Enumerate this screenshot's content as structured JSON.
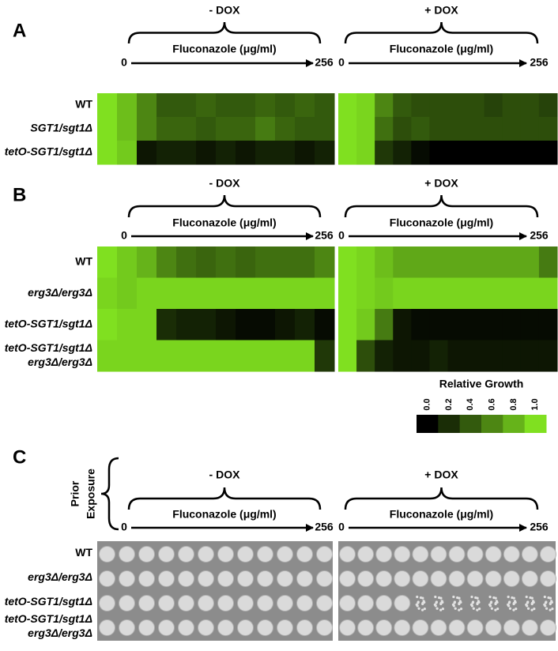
{
  "panels": [
    {
      "letter": "A",
      "rows": [
        {
          "lines": [
            "WT"
          ]
        },
        {
          "lines": [
            "SGT1/sgt1Δ"
          ]
        },
        {
          "lines": [
            "tetO-SGT1/sgt1Δ"
          ]
        }
      ],
      "conditions": [
        {
          "label": "- DOX",
          "axis_title": "Fluconazole (μg/ml)",
          "axis_start": 0,
          "axis_end": 256,
          "values": [
            [
              1.0,
              0.85,
              0.6,
              0.4,
              0.4,
              0.45,
              0.4,
              0.4,
              0.45,
              0.4,
              0.45,
              0.4
            ],
            [
              1.0,
              0.85,
              0.6,
              0.45,
              0.45,
              0.4,
              0.45,
              0.45,
              0.55,
              0.45,
              0.4,
              0.4
            ],
            [
              1.0,
              0.9,
              0.1,
              0.15,
              0.15,
              0.1,
              0.15,
              0.1,
              0.15,
              0.15,
              0.1,
              0.15
            ]
          ]
        },
        {
          "label": "+ DOX",
          "axis_title": "Fluconazole (μg/ml)",
          "axis_start": 0,
          "axis_end": 256,
          "values": [
            [
              1.0,
              0.95,
              0.6,
              0.4,
              0.35,
              0.35,
              0.35,
              0.35,
              0.3,
              0.35,
              0.35,
              0.3
            ],
            [
              1.0,
              0.95,
              0.5,
              0.35,
              0.4,
              0.35,
              0.35,
              0.35,
              0.35,
              0.35,
              0.35,
              0.35
            ],
            [
              1.0,
              0.95,
              0.25,
              0.15,
              0.05,
              0,
              0,
              0,
              0,
              0,
              0,
              0
            ]
          ]
        }
      ]
    },
    {
      "letter": "B",
      "rows": [
        {
          "lines": [
            "WT"
          ]
        },
        {
          "lines": [
            "erg3Δ/erg3Δ"
          ]
        },
        {
          "lines": [
            "tetO-SGT1/sgt1Δ"
          ]
        },
        {
          "lines": [
            "tetO-SGT1/sgt1Δ",
            "erg3Δ/erg3Δ"
          ]
        }
      ],
      "conditions": [
        {
          "label": "- DOX",
          "axis_title": "Fluconazole (μg/ml)",
          "axis_start": 0,
          "axis_end": 256,
          "values": [
            [
              1.0,
              0.9,
              0.8,
              0.6,
              0.5,
              0.45,
              0.5,
              0.45,
              0.5,
              0.5,
              0.5,
              0.6
            ],
            [
              0.95,
              0.9,
              0.95,
              0.95,
              0.95,
              0.95,
              0.95,
              0.95,
              0.95,
              0.95,
              0.95,
              0.95
            ],
            [
              1.0,
              0.95,
              0.95,
              0.2,
              0.15,
              0.15,
              0.1,
              0.05,
              0.05,
              0.1,
              0.15,
              0.05
            ],
            [
              0.95,
              0.95,
              0.95,
              0.95,
              0.95,
              0.95,
              0.95,
              0.95,
              0.95,
              0.95,
              0.95,
              0.25
            ]
          ]
        },
        {
          "label": "+ DOX",
          "axis_title": "Fluconazole (μg/ml)",
          "axis_start": 0,
          "axis_end": 256,
          "values": [
            [
              1.0,
              0.95,
              0.85,
              0.75,
              0.75,
              0.75,
              0.75,
              0.75,
              0.75,
              0.75,
              0.75,
              0.55
            ],
            [
              1.0,
              0.95,
              0.9,
              0.95,
              0.95,
              0.95,
              0.95,
              0.95,
              0.95,
              0.95,
              0.95,
              0.95
            ],
            [
              1.0,
              0.9,
              0.55,
              0.1,
              0.05,
              0.05,
              0.05,
              0.05,
              0.05,
              0.05,
              0.05,
              0.05
            ],
            [
              1.0,
              0.35,
              0.15,
              0.1,
              0.1,
              0.15,
              0.1,
              0.1,
              0.1,
              0.1,
              0.1,
              0.1
            ]
          ]
        }
      ]
    }
  ],
  "legend": {
    "title": "Relative Growth",
    "ticks": [
      {
        "value": 0,
        "label": "0.0"
      },
      {
        "value": 0.2,
        "label": "0.2"
      },
      {
        "value": 0.4,
        "label": "0.4"
      },
      {
        "value": 0.6,
        "label": "0.6"
      },
      {
        "value": 0.8,
        "label": "0.8"
      },
      {
        "value": 1,
        "label": "1.0"
      }
    ]
  },
  "panel_c": {
    "letter": "C",
    "prior_exposure": [
      "Prior",
      "Exposure"
    ],
    "rows": [
      {
        "lines": [
          "WT"
        ]
      },
      {
        "lines": [
          "erg3Δ/erg3Δ"
        ]
      },
      {
        "lines": [
          "tetO-SGT1/sgt1Δ"
        ]
      },
      {
        "lines": [
          "tetO-SGT1/sgt1Δ",
          "erg3Δ/erg3Δ"
        ]
      }
    ],
    "conditions": [
      {
        "label": "- DOX",
        "axis_title": "Fluconazole (μg/ml)",
        "axis_start": 0,
        "axis_end": 256
      },
      {
        "label": "+ DOX",
        "axis_title": "Fluconazole (μg/ml)",
        "axis_start": 0,
        "axis_end": 256
      }
    ]
  }
}
